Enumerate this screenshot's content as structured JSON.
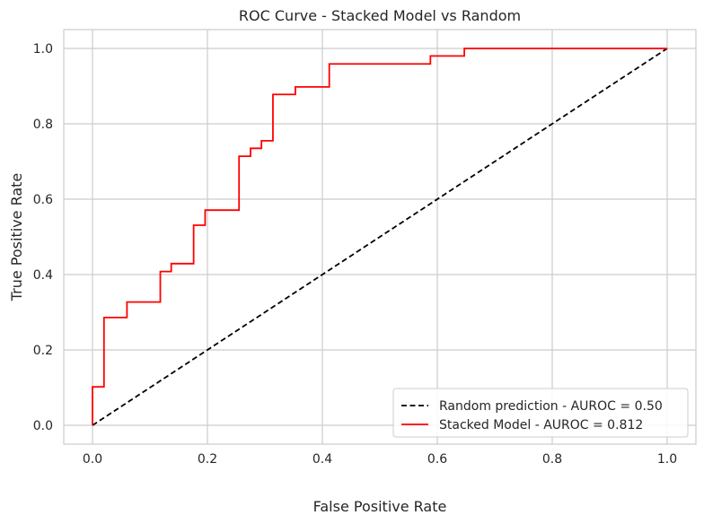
{
  "chart_data": {
    "type": "line",
    "title": "ROC Curve - Stacked Model vs Random",
    "xlabel": "False Positive Rate",
    "ylabel": "True Positive Rate",
    "xlim": [
      -0.05,
      1.05
    ],
    "ylim": [
      -0.05,
      1.05
    ],
    "xticks": [
      0.0,
      0.2,
      0.4,
      0.6,
      0.8,
      1.0
    ],
    "yticks": [
      0.0,
      0.2,
      0.4,
      0.6,
      0.8,
      1.0
    ],
    "xtick_labels": [
      "0.0",
      "0.2",
      "0.4",
      "0.6",
      "0.8",
      "1.0"
    ],
    "ytick_labels": [
      "0.0",
      "0.2",
      "0.4",
      "0.6",
      "0.8",
      "1.0"
    ],
    "grid": true,
    "legend_position": "bottom-right",
    "series": [
      {
        "name": "Random prediction - AUROC = 0.50",
        "color": "#000000",
        "dashed": true,
        "x": [
          0.0,
          1.0
        ],
        "y": [
          0.0,
          1.0
        ]
      },
      {
        "name": "Stacked Model - AUROC = 0.812",
        "color": "#ff0000",
        "dashed": false,
        "x": [
          0.0,
          0.0,
          0.02,
          0.02,
          0.06,
          0.06,
          0.118,
          0.118,
          0.137,
          0.137,
          0.176,
          0.176,
          0.196,
          0.196,
          0.255,
          0.255,
          0.275,
          0.275,
          0.294,
          0.294,
          0.314,
          0.314,
          0.353,
          0.353,
          0.412,
          0.412,
          0.588,
          0.588,
          0.647,
          0.647,
          1.0
        ],
        "y": [
          0.0,
          0.102,
          0.102,
          0.286,
          0.286,
          0.327,
          0.327,
          0.408,
          0.408,
          0.429,
          0.429,
          0.531,
          0.531,
          0.571,
          0.571,
          0.714,
          0.714,
          0.735,
          0.735,
          0.755,
          0.755,
          0.878,
          0.878,
          0.898,
          0.898,
          0.959,
          0.959,
          0.98,
          0.98,
          1.0,
          1.0
        ]
      }
    ]
  }
}
